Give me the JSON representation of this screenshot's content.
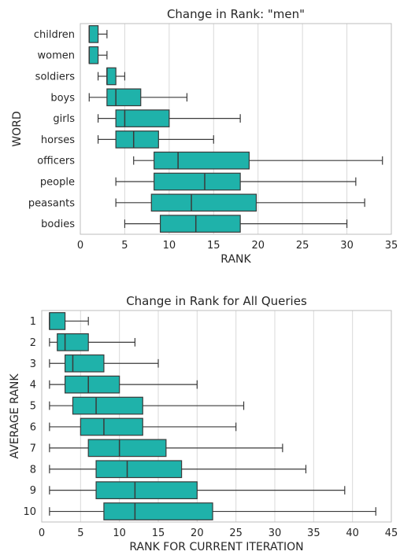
{
  "colors": {
    "box_fill": "#1fb2aa",
    "line": "#3a3a3a",
    "grid": "#d9d9d9",
    "frame": "#bdbdbd"
  },
  "chart_data": [
    {
      "type": "boxplot",
      "orientation": "horizontal",
      "title": "Change in Rank: \"men\"",
      "xlabel": "RANK",
      "ylabel": "WORD",
      "xlim": [
        0,
        35
      ],
      "xticks": [
        0,
        5,
        10,
        15,
        20,
        25,
        30,
        35
      ],
      "grid": true,
      "categories": [
        "children",
        "women",
        "soldiers",
        "boys",
        "girls",
        "horses",
        "officers",
        "people",
        "peasants",
        "bodies"
      ],
      "boxes": [
        {
          "label": "children",
          "whisker_low": 1,
          "q1": 1,
          "median": 1,
          "q3": 2,
          "whisker_high": 3
        },
        {
          "label": "women",
          "whisker_low": 1,
          "q1": 1,
          "median": 1,
          "q3": 2,
          "whisker_high": 3
        },
        {
          "label": "soldiers",
          "whisker_low": 2,
          "q1": 3,
          "median": 3,
          "q3": 4,
          "whisker_high": 5
        },
        {
          "label": "boys",
          "whisker_low": 1,
          "q1": 3,
          "median": 4,
          "q3": 6.8,
          "whisker_high": 12
        },
        {
          "label": "girls",
          "whisker_low": 2,
          "q1": 4,
          "median": 5,
          "q3": 10,
          "whisker_high": 18
        },
        {
          "label": "horses",
          "whisker_low": 2,
          "q1": 4,
          "median": 6,
          "q3": 8.8,
          "whisker_high": 15
        },
        {
          "label": "officers",
          "whisker_low": 6,
          "q1": 8.3,
          "median": 11,
          "q3": 19,
          "whisker_high": 34
        },
        {
          "label": "people",
          "whisker_low": 4,
          "q1": 8.3,
          "median": 14,
          "q3": 18,
          "whisker_high": 31
        },
        {
          "label": "peasants",
          "whisker_low": 4,
          "q1": 8,
          "median": 12.5,
          "q3": 19.8,
          "whisker_high": 32
        },
        {
          "label": "bodies",
          "whisker_low": 5,
          "q1": 9,
          "median": 13,
          "q3": 18,
          "whisker_high": 30
        }
      ]
    },
    {
      "type": "boxplot",
      "orientation": "horizontal",
      "title": "Change in Rank for All Queries",
      "xlabel": "RANK FOR CURRENT ITERATION",
      "ylabel": "AVERAGE RANK",
      "xlim": [
        0,
        45
      ],
      "xticks": [
        0,
        5,
        10,
        15,
        20,
        25,
        30,
        35,
        40,
        45
      ],
      "grid": true,
      "categories": [
        "1",
        "2",
        "3",
        "4",
        "5",
        "6",
        "7",
        "8",
        "9",
        "10"
      ],
      "boxes": [
        {
          "label": "1",
          "whisker_low": 1,
          "q1": 1,
          "median": 1,
          "q3": 3,
          "whisker_high": 6
        },
        {
          "label": "2",
          "whisker_low": 1,
          "q1": 2,
          "median": 3,
          "q3": 6,
          "whisker_high": 12
        },
        {
          "label": "3",
          "whisker_low": 1,
          "q1": 3,
          "median": 4,
          "q3": 8,
          "whisker_high": 15
        },
        {
          "label": "4",
          "whisker_low": 1,
          "q1": 3,
          "median": 6,
          "q3": 10,
          "whisker_high": 20
        },
        {
          "label": "5",
          "whisker_low": 1,
          "q1": 4,
          "median": 7,
          "q3": 13,
          "whisker_high": 26
        },
        {
          "label": "6",
          "whisker_low": 1,
          "q1": 5,
          "median": 8,
          "q3": 13,
          "whisker_high": 25
        },
        {
          "label": "7",
          "whisker_low": 1,
          "q1": 6,
          "median": 10,
          "q3": 16,
          "whisker_high": 31
        },
        {
          "label": "8",
          "whisker_low": 1,
          "q1": 7,
          "median": 11,
          "q3": 18,
          "whisker_high": 34
        },
        {
          "label": "9",
          "whisker_low": 1,
          "q1": 7,
          "median": 12,
          "q3": 20,
          "whisker_high": 39
        },
        {
          "label": "10",
          "whisker_low": 1,
          "q1": 8,
          "median": 12,
          "q3": 22,
          "whisker_high": 43
        }
      ]
    }
  ]
}
